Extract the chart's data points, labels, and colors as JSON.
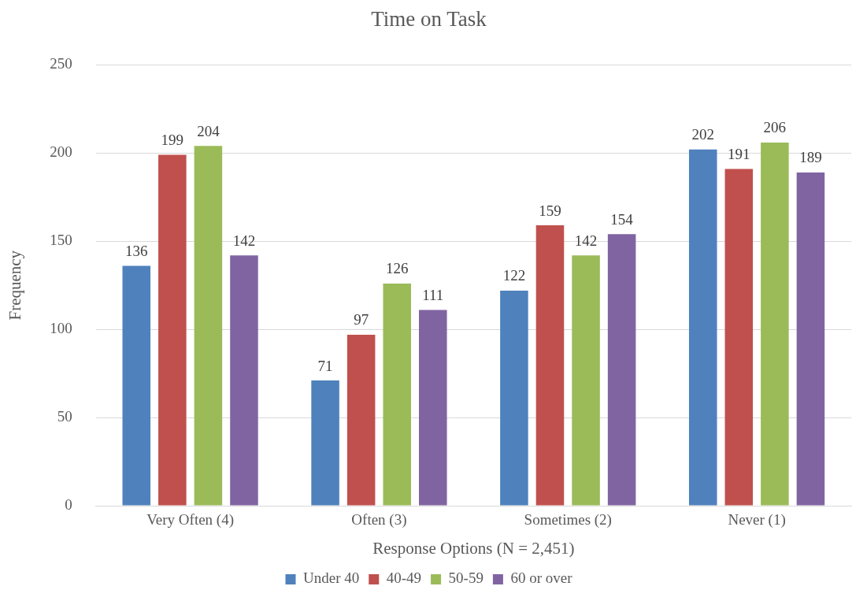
{
  "chart_data": {
    "type": "bar",
    "title": "Time on Task",
    "xlabel": "Response Options (N = 2,451)",
    "ylabel": "Frequency",
    "categories": [
      "Very Often (4)",
      "Often (3)",
      "Sometimes (2)",
      "Never (1)"
    ],
    "series": [
      {
        "name": "Under 40",
        "color": "#4f81bd",
        "values": [
          136,
          71,
          122,
          202
        ]
      },
      {
        "name": "40-49",
        "color": "#c0504d",
        "values": [
          199,
          97,
          159,
          191
        ]
      },
      {
        "name": "50-59",
        "color": "#9bbb59",
        "values": [
          204,
          126,
          142,
          206
        ]
      },
      {
        "name": "60 or over",
        "color": "#8064a2",
        "values": [
          142,
          111,
          154,
          189
        ]
      }
    ],
    "ylim": [
      0,
      250
    ],
    "yticks": [
      0,
      50,
      100,
      150,
      200,
      250
    ],
    "grid": "y",
    "legend": "bottom",
    "data_labels": true
  }
}
